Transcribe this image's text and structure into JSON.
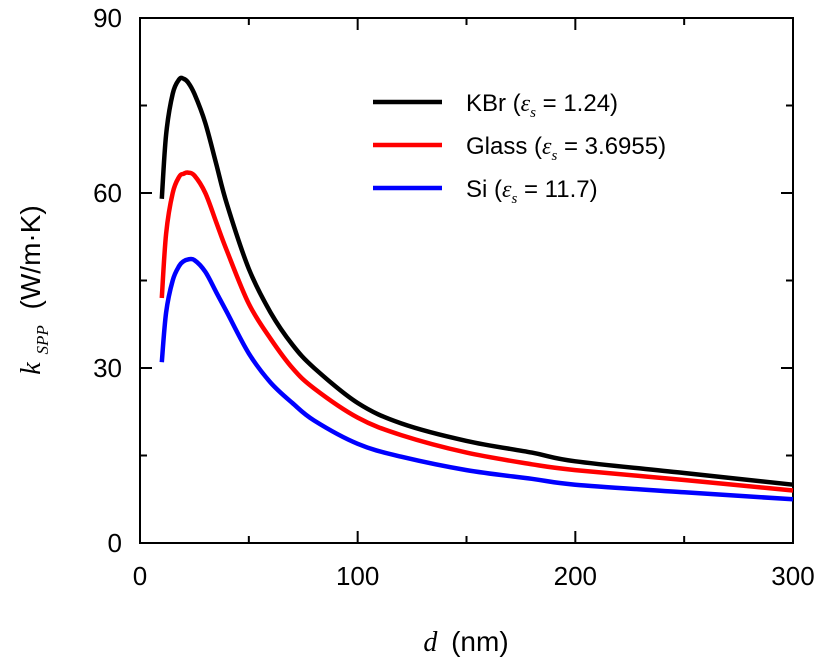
{
  "chart_data": {
    "type": "line",
    "title": "",
    "xlabel": {
      "symbol": "d",
      "unit": "(nm)"
    },
    "ylabel": {
      "symbol": "k",
      "subscript": "SPP",
      "unit": "(W/m·K)"
    },
    "xlim": [
      0,
      300
    ],
    "ylim": [
      0,
      90
    ],
    "xticks": [
      0,
      100,
      200,
      300
    ],
    "yticks": [
      0,
      30,
      60,
      90
    ],
    "x_minor_ticks": [
      50,
      150,
      250
    ],
    "y_minor_ticks": [
      15,
      45,
      75
    ],
    "grid": false,
    "legend_position": "top-right",
    "x": [
      10,
      12,
      15,
      18,
      20,
      22,
      25,
      30,
      35,
      40,
      50,
      60,
      70,
      80,
      100,
      120,
      150,
      180,
      200,
      250,
      300
    ],
    "series": [
      {
        "name": "KBr",
        "epsilon_label": "ε",
        "epsilon_sub": "s",
        "value_text": " = 1.24)",
        "color": "#000000",
        "values": [
          59,
          70,
          77,
          79.5,
          79.6,
          79,
          77,
          72,
          65,
          58,
          47,
          39.5,
          34,
          30,
          24,
          20.5,
          17.5,
          15.5,
          14,
          12,
          10
        ]
      },
      {
        "name": "Glass",
        "epsilon_label": "ε",
        "epsilon_sub": "s",
        "value_text": " = 3.6955)",
        "color": "#ff0000",
        "values": [
          42,
          53,
          60,
          62.8,
          63.3,
          63.5,
          63,
          60,
          55,
          50,
          41,
          35,
          30,
          26.5,
          21.5,
          18.5,
          15.5,
          13.5,
          12.5,
          10.8,
          9
        ]
      },
      {
        "name": "Si",
        "epsilon_label": "ε",
        "epsilon_sub": "s",
        "value_text": " = 11.7)",
        "color": "#0000ff",
        "values": [
          31,
          39.5,
          45,
          47.5,
          48.3,
          48.6,
          48.5,
          46.5,
          43,
          39.5,
          32.5,
          27.5,
          24,
          21,
          17,
          14.8,
          12.5,
          11,
          10,
          8.7,
          7.5
        ]
      }
    ]
  }
}
